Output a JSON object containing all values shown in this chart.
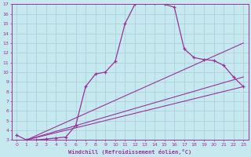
{
  "bg_color": "#c6e9f0",
  "grid_color": "#a8cdd4",
  "line_color": "#993399",
  "xlabel": "Windchill (Refroidissement éolien,°C)",
  "xlim": [
    -0.5,
    23.5
  ],
  "ylim": [
    3,
    17
  ],
  "xticks": [
    0,
    1,
    2,
    3,
    4,
    5,
    6,
    7,
    8,
    9,
    10,
    11,
    12,
    13,
    14,
    15,
    16,
    17,
    18,
    19,
    20,
    21,
    22,
    23
  ],
  "yticks": [
    3,
    4,
    5,
    6,
    7,
    8,
    9,
    10,
    11,
    12,
    13,
    14,
    15,
    16,
    17
  ],
  "line1_x": [
    0,
    1,
    2,
    3,
    4,
    5,
    6,
    7,
    8,
    9,
    10,
    11,
    12,
    13,
    14,
    15,
    16,
    17,
    18,
    19,
    20,
    21,
    22,
    23
  ],
  "line1_y": [
    3.5,
    3.0,
    3.0,
    3.1,
    3.2,
    3.3,
    4.5,
    8.5,
    9.8,
    10.0,
    11.1,
    15.0,
    17.0,
    17.1,
    17.1,
    17.0,
    16.7,
    12.4,
    11.5,
    11.3,
    11.2,
    10.7,
    9.5,
    8.5
  ],
  "line2_x": [
    1,
    23
  ],
  "line2_y": [
    3.0,
    13.0
  ],
  "line3_x": [
    1,
    23
  ],
  "line3_y": [
    3.0,
    9.5
  ],
  "line4_x": [
    1,
    23
  ],
  "line4_y": [
    3.0,
    8.5
  ]
}
